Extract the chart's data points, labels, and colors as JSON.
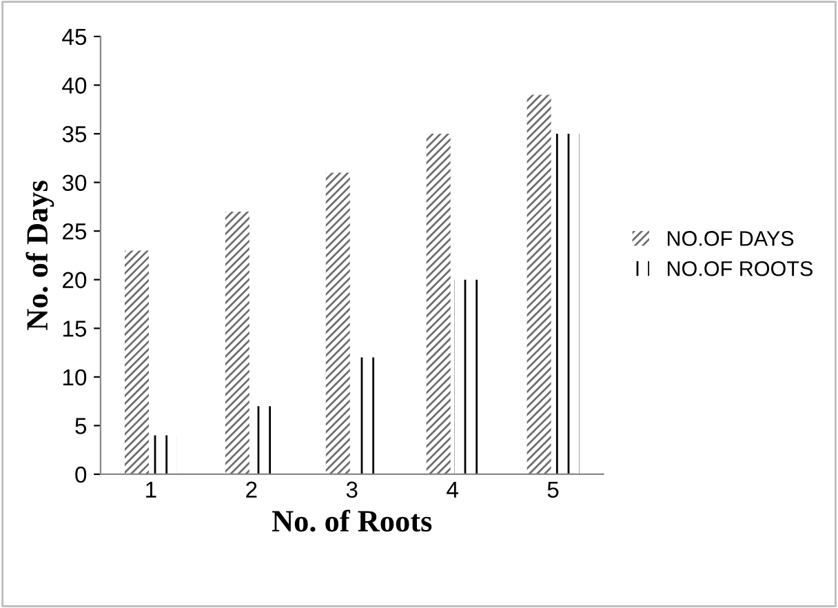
{
  "chart_data": {
    "type": "bar",
    "xlabel": "No. of Roots",
    "ylabel": "No. of Days",
    "categories": [
      "1",
      "2",
      "3",
      "4",
      "5"
    ],
    "series": [
      {
        "name": "NO.OF DAYS",
        "color": "#6e6e6e",
        "values": [
          23,
          27,
          31,
          35,
          39
        ]
      },
      {
        "name": "NO.OF ROOTS",
        "color": "#000000",
        "values": [
          4,
          7,
          12,
          20,
          35
        ]
      }
    ],
    "ylim": [
      0,
      45
    ],
    "yticks": [
      0,
      5,
      10,
      15,
      20,
      25,
      30,
      35,
      40,
      45
    ],
    "grid": false,
    "legend": "right"
  }
}
